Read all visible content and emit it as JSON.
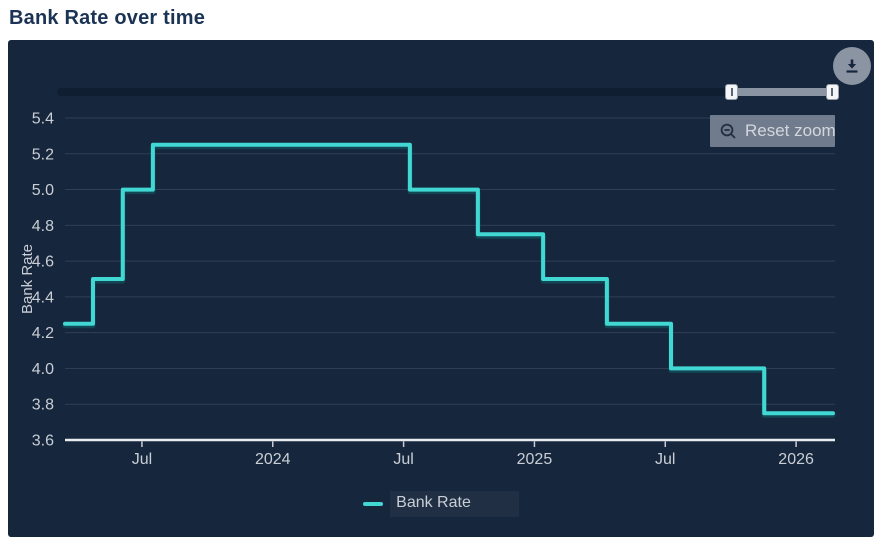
{
  "page_title": "Bank Rate over time",
  "toolbar": {
    "reset_zoom_label": "Reset zoom"
  },
  "icons": {
    "download": "download-arrow-in-circle",
    "reset_zoom": "magnifier-zoom-out"
  },
  "navigator": {
    "range_start_frac": 0.862,
    "range_end_frac": 0.99
  },
  "colors": {
    "page_bg": "#ffffff",
    "title_text": "#1B3354",
    "card_bg": "#16263C",
    "grid_line": "#44536A",
    "axis_line": "#E8EBEF",
    "tick_text": "#C9CED6",
    "series_line": "#41D8D3",
    "series_shadow": "#0E6E70",
    "reset_btn_bg": "#7D8898",
    "reset_btn_text": "#D3D7DD",
    "download_btn_bg": "#8A94A3",
    "download_icon": "#16263C",
    "navigator_track": "#101E31",
    "navigator_range": "#8A94A2",
    "navigator_handle": "#F4F5F6"
  },
  "chart_data": {
    "type": "line",
    "subtype": "step-after",
    "title": "Bank Rate over time",
    "xlabel": "",
    "ylabel": "Bank Rate",
    "grid": true,
    "legend_position": "bottom",
    "ylim": [
      3.6,
      5.4
    ],
    "yticks": [
      {
        "value": 3.6,
        "label": "3.6"
      },
      {
        "value": 3.8,
        "label": "3.8"
      },
      {
        "value": 4.0,
        "label": "4.0"
      },
      {
        "value": 4.2,
        "label": "4.2"
      },
      {
        "value": 4.4,
        "label": "4.4"
      },
      {
        "value": 4.6,
        "label": "4.6"
      },
      {
        "value": 4.8,
        "label": "4.8"
      },
      {
        "value": 5.0,
        "label": "5.0"
      },
      {
        "value": 5.2,
        "label": "5.2"
      },
      {
        "value": 5.4,
        "label": "5.4"
      }
    ],
    "xlim": [
      2023.206,
      2026.141
    ],
    "xticks": [
      {
        "x": 2023.5,
        "label": "Jul"
      },
      {
        "x": 2024.0,
        "label": "2024"
      },
      {
        "x": 2024.5,
        "label": "Jul"
      },
      {
        "x": 2025.0,
        "label": "2025"
      },
      {
        "x": 2025.5,
        "label": "Jul"
      },
      {
        "x": 2026.0,
        "label": "2026"
      }
    ],
    "series": [
      {
        "name": "Bank Rate",
        "color": "#41D8D3",
        "points": [
          {
            "date": "2023-03",
            "x": 2023.206,
            "value": 4.25
          },
          {
            "date": "2023-05",
            "x": 2023.313,
            "value": 4.5
          },
          {
            "date": "2023-06",
            "x": 2023.427,
            "value": 5.0
          },
          {
            "date": "2023-08",
            "x": 2023.542,
            "value": 5.25
          },
          {
            "date": "2024-08",
            "x": 2024.524,
            "value": 5.0
          },
          {
            "date": "2024-11",
            "x": 2024.784,
            "value": 4.75
          },
          {
            "date": "2025-02",
            "x": 2025.033,
            "value": 4.5
          },
          {
            "date": "2025-05",
            "x": 2025.277,
            "value": 4.25
          },
          {
            "date": "2025-08",
            "x": 2025.522,
            "value": 4.0
          },
          {
            "date": "2025-12",
            "x": 2025.878,
            "value": 3.75
          },
          {
            "date": "2026-02",
            "x": 2026.141,
            "value": 3.75
          }
        ]
      }
    ]
  }
}
